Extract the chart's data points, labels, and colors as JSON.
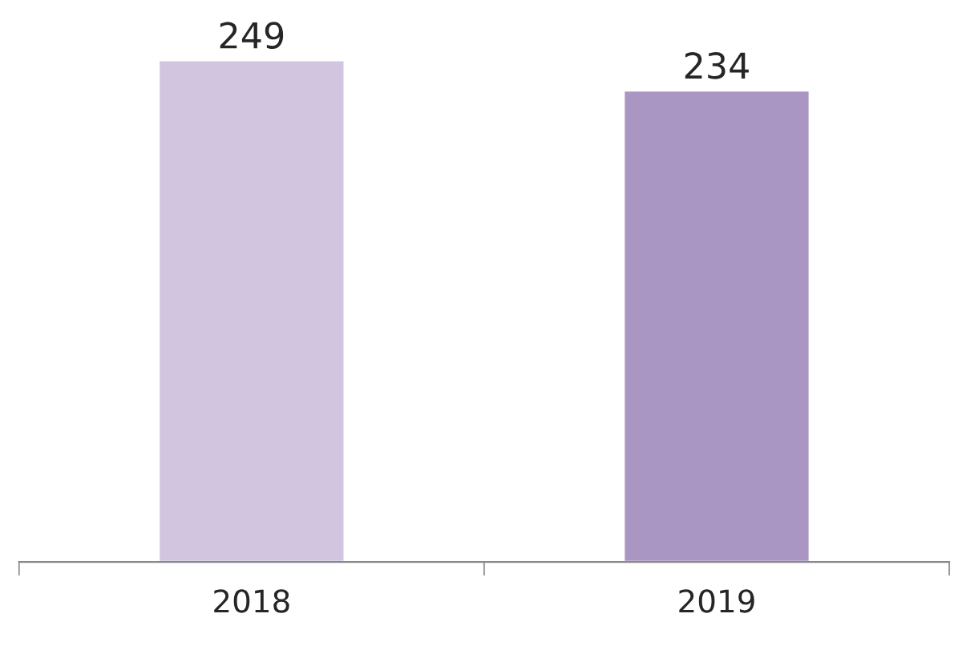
{
  "chart_data": {
    "type": "bar",
    "categories": [
      "2018",
      "2019"
    ],
    "values": [
      249,
      234
    ],
    "colors": [
      "#d2c5e0",
      "#aa96c3"
    ],
    "data_labels": true,
    "grid": false,
    "legend": false
  }
}
